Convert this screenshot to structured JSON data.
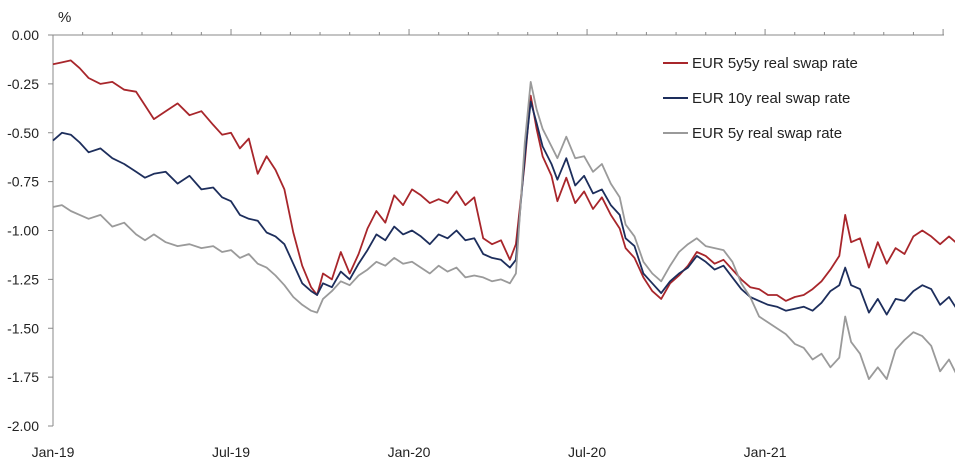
{
  "chart_data": {
    "type": "line",
    "ylabel": "%",
    "ylim": [
      -2.0,
      0.0
    ],
    "yticks": [
      "0.00",
      "-0.25",
      "-0.50",
      "-0.75",
      "-1.00",
      "-1.25",
      "-1.50",
      "-1.75",
      "-2.00"
    ],
    "ytick_values": [
      0.0,
      -0.25,
      -0.5,
      -0.75,
      -1.0,
      -1.25,
      -1.5,
      -1.75,
      -2.0
    ],
    "xlim": [
      0,
      30.5
    ],
    "xticks": [
      "Jan-19",
      "Jul-19",
      "Jan-20",
      "Jul-20",
      "Jan-21"
    ],
    "xtick_values": [
      0,
      6,
      12,
      18,
      24
    ],
    "grid": false,
    "legend": "top-right",
    "series": [
      {
        "name": "EUR 5y5y real swap rate",
        "color": "#a8262b",
        "points": [
          [
            0,
            -0.15
          ],
          [
            0.3,
            -0.14
          ],
          [
            0.6,
            -0.13
          ],
          [
            0.9,
            -0.17
          ],
          [
            1.2,
            -0.22
          ],
          [
            1.6,
            -0.25
          ],
          [
            2.0,
            -0.24
          ],
          [
            2.4,
            -0.28
          ],
          [
            2.8,
            -0.29
          ],
          [
            3.1,
            -0.36
          ],
          [
            3.4,
            -0.43
          ],
          [
            3.8,
            -0.39
          ],
          [
            4.2,
            -0.35
          ],
          [
            4.6,
            -0.41
          ],
          [
            5.0,
            -0.39
          ],
          [
            5.4,
            -0.46
          ],
          [
            5.7,
            -0.51
          ],
          [
            6.0,
            -0.5
          ],
          [
            6.3,
            -0.58
          ],
          [
            6.6,
            -0.53
          ],
          [
            6.9,
            -0.71
          ],
          [
            7.2,
            -0.62
          ],
          [
            7.5,
            -0.69
          ],
          [
            7.8,
            -0.79
          ],
          [
            8.1,
            -1.01
          ],
          [
            8.4,
            -1.18
          ],
          [
            8.7,
            -1.29
          ],
          [
            8.9,
            -1.33
          ],
          [
            9.1,
            -1.22
          ],
          [
            9.4,
            -1.25
          ],
          [
            9.7,
            -1.11
          ],
          [
            10.0,
            -1.22
          ],
          [
            10.3,
            -1.12
          ],
          [
            10.6,
            -0.99
          ],
          [
            10.9,
            -0.9
          ],
          [
            11.2,
            -0.96
          ],
          [
            11.5,
            -0.82
          ],
          [
            11.8,
            -0.87
          ],
          [
            12.1,
            -0.79
          ],
          [
            12.4,
            -0.82
          ],
          [
            12.7,
            -0.86
          ],
          [
            13.0,
            -0.84
          ],
          [
            13.3,
            -0.86
          ],
          [
            13.6,
            -0.8
          ],
          [
            13.9,
            -0.87
          ],
          [
            14.2,
            -0.83
          ],
          [
            14.5,
            -1.04
          ],
          [
            14.8,
            -1.07
          ],
          [
            15.1,
            -1.05
          ],
          [
            15.4,
            -1.15
          ],
          [
            15.6,
            -1.07
          ],
          [
            15.9,
            -0.65
          ],
          [
            16.1,
            -0.31
          ],
          [
            16.3,
            -0.48
          ],
          [
            16.5,
            -0.62
          ],
          [
            16.8,
            -0.72
          ],
          [
            17.0,
            -0.85
          ],
          [
            17.3,
            -0.73
          ],
          [
            17.6,
            -0.86
          ],
          [
            17.9,
            -0.8
          ],
          [
            18.2,
            -0.89
          ],
          [
            18.5,
            -0.83
          ],
          [
            18.8,
            -0.92
          ],
          [
            19.1,
            -0.99
          ],
          [
            19.3,
            -1.09
          ],
          [
            19.6,
            -1.14
          ],
          [
            19.9,
            -1.24
          ],
          [
            20.2,
            -1.31
          ],
          [
            20.5,
            -1.35
          ],
          [
            20.8,
            -1.27
          ],
          [
            21.1,
            -1.23
          ],
          [
            21.4,
            -1.18
          ],
          [
            21.7,
            -1.11
          ],
          [
            22.0,
            -1.13
          ],
          [
            22.3,
            -1.17
          ],
          [
            22.6,
            -1.15
          ],
          [
            22.9,
            -1.2
          ],
          [
            23.2,
            -1.25
          ],
          [
            23.5,
            -1.29
          ],
          [
            23.8,
            -1.3
          ],
          [
            24.1,
            -1.33
          ],
          [
            24.4,
            -1.33
          ],
          [
            24.7,
            -1.36
          ],
          [
            25.0,
            -1.34
          ],
          [
            25.3,
            -1.33
          ],
          [
            25.6,
            -1.3
          ],
          [
            25.9,
            -1.26
          ],
          [
            26.2,
            -1.2
          ],
          [
            26.5,
            -1.13
          ],
          [
            26.7,
            -0.92
          ],
          [
            26.9,
            -1.06
          ],
          [
            27.2,
            -1.04
          ],
          [
            27.5,
            -1.19
          ],
          [
            27.8,
            -1.06
          ],
          [
            28.1,
            -1.17
          ],
          [
            28.4,
            -1.09
          ],
          [
            28.7,
            -1.12
          ],
          [
            29.0,
            -1.03
          ],
          [
            29.3,
            -1.0
          ],
          [
            29.6,
            -1.03
          ],
          [
            29.9,
            -1.07
          ],
          [
            30.2,
            -1.03
          ],
          [
            30.5,
            -1.07
          ]
        ]
      },
      {
        "name": "EUR 10y real swap rate",
        "color": "#1d2e5c",
        "points": [
          [
            0,
            -0.54
          ],
          [
            0.3,
            -0.5
          ],
          [
            0.6,
            -0.51
          ],
          [
            0.9,
            -0.55
          ],
          [
            1.2,
            -0.6
          ],
          [
            1.6,
            -0.58
          ],
          [
            2.0,
            -0.63
          ],
          [
            2.4,
            -0.66
          ],
          [
            2.8,
            -0.7
          ],
          [
            3.1,
            -0.73
          ],
          [
            3.4,
            -0.71
          ],
          [
            3.8,
            -0.7
          ],
          [
            4.2,
            -0.76
          ],
          [
            4.6,
            -0.72
          ],
          [
            5.0,
            -0.79
          ],
          [
            5.4,
            -0.78
          ],
          [
            5.7,
            -0.83
          ],
          [
            6.0,
            -0.85
          ],
          [
            6.3,
            -0.92
          ],
          [
            6.6,
            -0.94
          ],
          [
            6.9,
            -0.95
          ],
          [
            7.2,
            -1.01
          ],
          [
            7.5,
            -1.03
          ],
          [
            7.8,
            -1.07
          ],
          [
            8.1,
            -1.17
          ],
          [
            8.4,
            -1.27
          ],
          [
            8.7,
            -1.31
          ],
          [
            8.9,
            -1.33
          ],
          [
            9.1,
            -1.27
          ],
          [
            9.4,
            -1.29
          ],
          [
            9.7,
            -1.21
          ],
          [
            10.0,
            -1.25
          ],
          [
            10.3,
            -1.17
          ],
          [
            10.6,
            -1.1
          ],
          [
            10.9,
            -1.02
          ],
          [
            11.2,
            -1.05
          ],
          [
            11.5,
            -0.98
          ],
          [
            11.8,
            -1.02
          ],
          [
            12.1,
            -1.0
          ],
          [
            12.4,
            -1.03
          ],
          [
            12.7,
            -1.07
          ],
          [
            13.0,
            -1.02
          ],
          [
            13.3,
            -1.04
          ],
          [
            13.6,
            -1.0
          ],
          [
            13.9,
            -1.05
          ],
          [
            14.2,
            -1.04
          ],
          [
            14.5,
            -1.12
          ],
          [
            14.8,
            -1.14
          ],
          [
            15.1,
            -1.15
          ],
          [
            15.4,
            -1.19
          ],
          [
            15.6,
            -1.15
          ],
          [
            15.9,
            -0.62
          ],
          [
            16.1,
            -0.34
          ],
          [
            16.3,
            -0.45
          ],
          [
            16.5,
            -0.57
          ],
          [
            16.8,
            -0.66
          ],
          [
            17.0,
            -0.74
          ],
          [
            17.3,
            -0.63
          ],
          [
            17.6,
            -0.77
          ],
          [
            17.9,
            -0.72
          ],
          [
            18.2,
            -0.81
          ],
          [
            18.5,
            -0.79
          ],
          [
            18.8,
            -0.87
          ],
          [
            19.1,
            -0.92
          ],
          [
            19.3,
            -1.04
          ],
          [
            19.6,
            -1.08
          ],
          [
            19.9,
            -1.22
          ],
          [
            20.2,
            -1.27
          ],
          [
            20.5,
            -1.32
          ],
          [
            20.8,
            -1.26
          ],
          [
            21.1,
            -1.22
          ],
          [
            21.4,
            -1.19
          ],
          [
            21.7,
            -1.13
          ],
          [
            22.0,
            -1.16
          ],
          [
            22.3,
            -1.2
          ],
          [
            22.6,
            -1.18
          ],
          [
            22.9,
            -1.24
          ],
          [
            23.2,
            -1.3
          ],
          [
            23.5,
            -1.34
          ],
          [
            23.8,
            -1.36
          ],
          [
            24.1,
            -1.38
          ],
          [
            24.4,
            -1.39
          ],
          [
            24.7,
            -1.41
          ],
          [
            25.0,
            -1.4
          ],
          [
            25.3,
            -1.39
          ],
          [
            25.6,
            -1.41
          ],
          [
            25.9,
            -1.37
          ],
          [
            26.2,
            -1.31
          ],
          [
            26.5,
            -1.28
          ],
          [
            26.7,
            -1.19
          ],
          [
            26.9,
            -1.28
          ],
          [
            27.2,
            -1.3
          ],
          [
            27.5,
            -1.42
          ],
          [
            27.8,
            -1.35
          ],
          [
            28.1,
            -1.43
          ],
          [
            28.4,
            -1.35
          ],
          [
            28.7,
            -1.36
          ],
          [
            29.0,
            -1.31
          ],
          [
            29.3,
            -1.28
          ],
          [
            29.6,
            -1.3
          ],
          [
            29.9,
            -1.38
          ],
          [
            30.2,
            -1.34
          ],
          [
            30.5,
            -1.41
          ]
        ]
      },
      {
        "name": "EUR 5y real swap rate",
        "color": "#9a9a9a",
        "points": [
          [
            0,
            -0.88
          ],
          [
            0.3,
            -0.87
          ],
          [
            0.6,
            -0.9
          ],
          [
            0.9,
            -0.92
          ],
          [
            1.2,
            -0.94
          ],
          [
            1.6,
            -0.92
          ],
          [
            2.0,
            -0.98
          ],
          [
            2.4,
            -0.96
          ],
          [
            2.8,
            -1.02
          ],
          [
            3.1,
            -1.05
          ],
          [
            3.4,
            -1.02
          ],
          [
            3.8,
            -1.06
          ],
          [
            4.2,
            -1.08
          ],
          [
            4.6,
            -1.07
          ],
          [
            5.0,
            -1.09
          ],
          [
            5.4,
            -1.08
          ],
          [
            5.7,
            -1.11
          ],
          [
            6.0,
            -1.1
          ],
          [
            6.3,
            -1.14
          ],
          [
            6.6,
            -1.12
          ],
          [
            6.9,
            -1.17
          ],
          [
            7.2,
            -1.19
          ],
          [
            7.5,
            -1.23
          ],
          [
            7.8,
            -1.28
          ],
          [
            8.1,
            -1.34
          ],
          [
            8.4,
            -1.38
          ],
          [
            8.7,
            -1.41
          ],
          [
            8.9,
            -1.42
          ],
          [
            9.1,
            -1.35
          ],
          [
            9.4,
            -1.31
          ],
          [
            9.7,
            -1.26
          ],
          [
            10.0,
            -1.28
          ],
          [
            10.3,
            -1.23
          ],
          [
            10.6,
            -1.2
          ],
          [
            10.9,
            -1.16
          ],
          [
            11.2,
            -1.18
          ],
          [
            11.5,
            -1.14
          ],
          [
            11.8,
            -1.17
          ],
          [
            12.1,
            -1.16
          ],
          [
            12.4,
            -1.19
          ],
          [
            12.7,
            -1.22
          ],
          [
            13.0,
            -1.18
          ],
          [
            13.3,
            -1.21
          ],
          [
            13.6,
            -1.19
          ],
          [
            13.9,
            -1.24
          ],
          [
            14.2,
            -1.23
          ],
          [
            14.5,
            -1.24
          ],
          [
            14.8,
            -1.26
          ],
          [
            15.1,
            -1.25
          ],
          [
            15.4,
            -1.27
          ],
          [
            15.6,
            -1.22
          ],
          [
            15.9,
            -0.55
          ],
          [
            16.1,
            -0.24
          ],
          [
            16.3,
            -0.38
          ],
          [
            16.5,
            -0.48
          ],
          [
            16.8,
            -0.57
          ],
          [
            17.0,
            -0.63
          ],
          [
            17.3,
            -0.52
          ],
          [
            17.6,
            -0.63
          ],
          [
            17.9,
            -0.62
          ],
          [
            18.2,
            -0.7
          ],
          [
            18.5,
            -0.66
          ],
          [
            18.8,
            -0.76
          ],
          [
            19.1,
            -0.83
          ],
          [
            19.3,
            -0.97
          ],
          [
            19.6,
            -1.03
          ],
          [
            19.9,
            -1.16
          ],
          [
            20.2,
            -1.22
          ],
          [
            20.5,
            -1.26
          ],
          [
            20.8,
            -1.18
          ],
          [
            21.1,
            -1.11
          ],
          [
            21.4,
            -1.07
          ],
          [
            21.7,
            -1.04
          ],
          [
            22.0,
            -1.08
          ],
          [
            22.3,
            -1.09
          ],
          [
            22.6,
            -1.1
          ],
          [
            22.9,
            -1.16
          ],
          [
            23.2,
            -1.27
          ],
          [
            23.5,
            -1.34
          ],
          [
            23.8,
            -1.44
          ],
          [
            24.1,
            -1.47
          ],
          [
            24.4,
            -1.5
          ],
          [
            24.7,
            -1.53
          ],
          [
            25.0,
            -1.58
          ],
          [
            25.3,
            -1.6
          ],
          [
            25.6,
            -1.66
          ],
          [
            25.9,
            -1.63
          ],
          [
            26.2,
            -1.7
          ],
          [
            26.5,
            -1.65
          ],
          [
            26.7,
            -1.44
          ],
          [
            26.9,
            -1.57
          ],
          [
            27.2,
            -1.63
          ],
          [
            27.5,
            -1.76
          ],
          [
            27.8,
            -1.7
          ],
          [
            28.1,
            -1.76
          ],
          [
            28.4,
            -1.61
          ],
          [
            28.7,
            -1.56
          ],
          [
            29.0,
            -1.52
          ],
          [
            29.3,
            -1.54
          ],
          [
            29.6,
            -1.59
          ],
          [
            29.9,
            -1.72
          ],
          [
            30.2,
            -1.66
          ],
          [
            30.5,
            -1.75
          ]
        ]
      }
    ]
  }
}
